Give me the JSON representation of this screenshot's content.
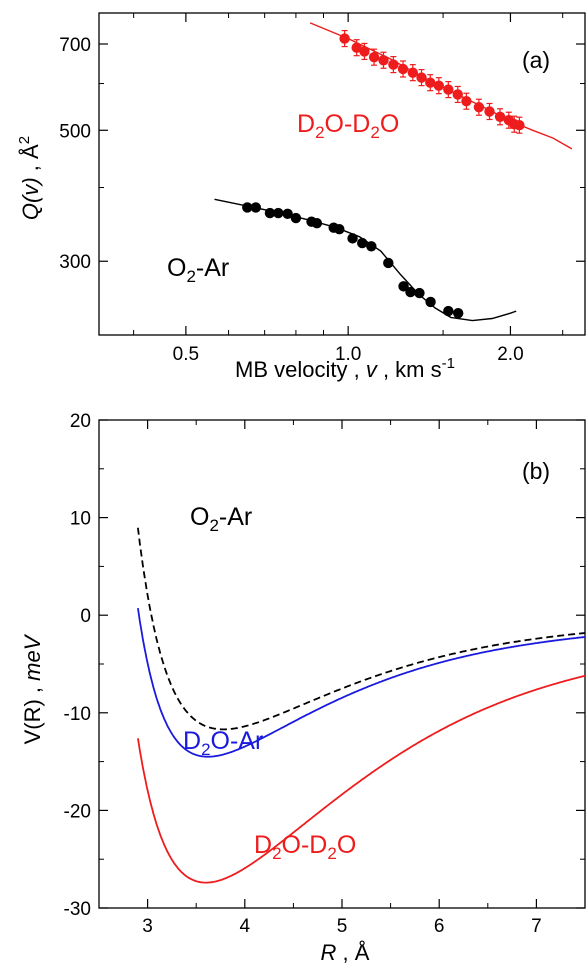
{
  "chart_data": [
    {
      "type": "scatter",
      "panel_label": "(a)",
      "xlabel": {
        "prefix": "MB velocity ,  ",
        "var": "v",
        "suffix": " , km s",
        "sup": "-1"
      },
      "ylabel": {
        "var": "Q(v)",
        "sep": " ,  ",
        "unit": "Å",
        "sup": "2"
      },
      "x_scale": "log",
      "y_scale": "log",
      "xlim": [
        0.345,
        2.75
      ],
      "ylim": [
        225,
        790
      ],
      "x_ticks": [
        0.5,
        1.0,
        2.0
      ],
      "x_tick_labels": [
        "0.5",
        "1.0",
        "2.0"
      ],
      "y_ticks": [
        300,
        500,
        700
      ],
      "y_tick_labels": [
        "300",
        "500",
        "700"
      ],
      "colors": {
        "d2o_d2o": "#ee1c1c",
        "o2_ar": "#000000"
      },
      "series": [
        {
          "name": "D₂O-D₂O",
          "label": {
            "base": "D",
            "sub1": "2",
            "mid": "O-D",
            "sub2": "2",
            "end": "O"
          },
          "color_key": "d2o_d2o",
          "points": [
            [
              0.985,
              715
            ],
            [
              1.037,
              690
            ],
            [
              1.072,
              680
            ],
            [
              1.117,
              665
            ],
            [
              1.163,
              657
            ],
            [
              1.213,
              646
            ],
            [
              1.264,
              635
            ],
            [
              1.318,
              626
            ],
            [
              1.368,
              614
            ],
            [
              1.42,
              602
            ],
            [
              1.473,
              595
            ],
            [
              1.534,
              586
            ],
            [
              1.597,
              575
            ],
            [
              1.657,
              560
            ],
            [
              1.748,
              547
            ],
            [
              1.829,
              538
            ],
            [
              1.913,
              527
            ],
            [
              1.986,
              520
            ],
            [
              2.033,
              512
            ],
            [
              2.078,
              510
            ]
          ],
          "fit": [
            [
              0.85,
              760
            ],
            [
              1.0,
              715
            ],
            [
              1.2,
              660
            ],
            [
              1.4,
              610
            ],
            [
              1.6,
              574
            ],
            [
              1.8,
              545
            ],
            [
              2.0,
              518
            ],
            [
              2.2,
              500
            ],
            [
              2.4,
              485
            ],
            [
              2.6,
              465
            ]
          ]
        },
        {
          "name": "O₂-Ar",
          "label": {
            "base": "O",
            "sub1": "2",
            "mid": "-Ar",
            "sub2": "",
            "end": ""
          },
          "color_key": "o2_ar",
          "points": [
            [
              0.65,
              370
            ],
            [
              0.674,
              370
            ],
            [
              0.716,
              362
            ],
            [
              0.742,
              362
            ],
            [
              0.772,
              361
            ],
            [
              0.8,
              355
            ],
            [
              0.855,
              350
            ],
            [
              0.875,
              348
            ],
            [
              0.94,
              342
            ],
            [
              0.963,
              340
            ],
            [
              1.019,
              328
            ],
            [
              1.062,
              322
            ],
            [
              1.104,
              318
            ],
            [
              1.187,
              298
            ],
            [
              1.267,
              272
            ],
            [
              1.305,
              266
            ],
            [
              1.356,
              265
            ],
            [
              1.422,
              256
            ],
            [
              1.534,
              247
            ],
            [
              1.6,
              245
            ]
          ],
          "fit": [
            [
              0.565,
              382
            ],
            [
              0.65,
              372
            ],
            [
              0.75,
              362
            ],
            [
              0.85,
              352
            ],
            [
              0.95,
              342
            ],
            [
              1.05,
              330
            ],
            [
              1.15,
              312
            ],
            [
              1.25,
              285
            ],
            [
              1.35,
              264
            ],
            [
              1.45,
              250
            ],
            [
              1.55,
              241
            ],
            [
              1.7,
              238
            ],
            [
              1.85,
              240
            ],
            [
              2.0,
              245
            ],
            [
              2.05,
              247
            ]
          ]
        }
      ]
    },
    {
      "type": "line",
      "panel_label": "(b)",
      "xlabel": {
        "var": "R",
        "sep": " ,  ",
        "unit": "Å"
      },
      "ylabel": {
        "base": "V(R)",
        "sep": "    ,  ",
        "unit": "meV"
      },
      "xlim": [
        2.5,
        7.5
      ],
      "ylim": [
        -30,
        20
      ],
      "x_ticks": [
        3,
        4,
        5,
        6,
        7
      ],
      "x_tick_labels": [
        "3",
        "4",
        "5",
        "6",
        "7"
      ],
      "y_ticks": [
        -30,
        -20,
        -10,
        0,
        10,
        20
      ],
      "y_tick_labels": [
        "-30",
        "-20",
        "-10",
        "0",
        "10",
        "20"
      ],
      "colors": {
        "o2_ar": "#000000",
        "d2o_ar": "#1a1adc",
        "d2o_d2o": "#ee1c1c"
      },
      "series": [
        {
          "name": "O₂-Ar",
          "label": {
            "base": "O",
            "sub1": "2",
            "mid": "-Ar",
            "sub2": "",
            "end": ""
          },
          "color_key": "o2_ar",
          "dashed": true,
          "well_depth": 11.7,
          "r_min": 3.78,
          "n": 6,
          "m": 3.3
        },
        {
          "name": "D₂O-Ar",
          "label": {
            "base": "D",
            "sub1": "2",
            "mid": "O-Ar",
            "sub2": "",
            "end": ""
          },
          "color_key": "d2o_ar",
          "dashed": false,
          "well_depth": 14.5,
          "r_min": 3.62,
          "n": 6.5,
          "m": 3.0
        },
        {
          "name": "D₂O-D₂O",
          "label": {
            "base": "D",
            "sub1": "2",
            "mid": "O-D",
            "sub2": "2",
            "end": "O"
          },
          "color_key": "d2o_d2o",
          "dashed": false,
          "well_depth": 27.4,
          "r_min": 3.6,
          "n": 5.2,
          "m": 2.4
        }
      ]
    }
  ]
}
